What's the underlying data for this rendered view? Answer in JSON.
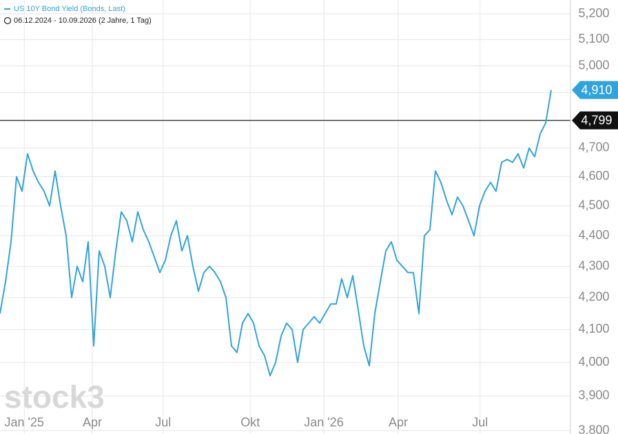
{
  "chart_data": {
    "type": "line",
    "subtitle": "06.12.2024 - 10.09.2026   (2 Jahre, 1 Tag)",
    "watermark": "stock3",
    "log_scale": true,
    "grid": true,
    "series": [
      {
        "name": "US 10Y Bond Yield (Bonds, Last)",
        "color": "#2fa3dc",
        "values": [
          4.15,
          4.25,
          4.38,
          4.6,
          4.55,
          4.68,
          4.62,
          4.58,
          4.55,
          4.5,
          4.62,
          4.5,
          4.4,
          4.2,
          4.3,
          4.25,
          4.38,
          4.05,
          4.35,
          4.3,
          4.2,
          4.35,
          4.48,
          4.45,
          4.38,
          4.48,
          4.42,
          4.38,
          4.33,
          4.28,
          4.32,
          4.4,
          4.45,
          4.35,
          4.4,
          4.3,
          4.22,
          4.28,
          4.3,
          4.28,
          4.25,
          4.2,
          4.05,
          4.03,
          4.12,
          4.15,
          4.12,
          4.05,
          4.02,
          3.96,
          4.0,
          4.08,
          4.12,
          4.1,
          4.0,
          4.1,
          4.12,
          4.14,
          4.12,
          4.15,
          4.18,
          4.18,
          4.26,
          4.2,
          4.27,
          4.16,
          4.05,
          3.99,
          4.15,
          4.25,
          4.35,
          4.38,
          4.32,
          4.3,
          4.28,
          4.28,
          4.15,
          4.4,
          4.42,
          4.62,
          4.58,
          4.52,
          4.47,
          4.53,
          4.5,
          4.45,
          4.4,
          4.5,
          4.55,
          4.58,
          4.55,
          4.65,
          4.66,
          4.65,
          4.68,
          4.63,
          4.7,
          4.67,
          4.75,
          4.79,
          4.91
        ]
      }
    ],
    "last_value": {
      "value": 4.91,
      "label": "4,910",
      "color": "#2fa3dc"
    },
    "reference_line": {
      "value": 4.799,
      "label": "4,799",
      "color": "#111111"
    },
    "xlim": [
      0,
      103.5
    ],
    "xticks": [
      {
        "value": 4.4,
        "label": "Jan '25"
      },
      {
        "value": 16.75,
        "label": "Apr"
      },
      {
        "value": 29.6,
        "label": "Jul"
      },
      {
        "value": 45.4,
        "label": "Okt"
      },
      {
        "value": 58.75,
        "label": "Jan '26"
      },
      {
        "value": 72.25,
        "label": "Apr"
      },
      {
        "value": 87.1,
        "label": "Jul"
      }
    ],
    "ylim": [
      3.8,
      5.2
    ],
    "yticks": [
      {
        "value": 3.8,
        "label": "3,800"
      },
      {
        "value": 3.9,
        "label": "3,900"
      },
      {
        "value": 4.0,
        "label": "4,000"
      },
      {
        "value": 4.1,
        "label": "4,100"
      },
      {
        "value": 4.2,
        "label": "4,200"
      },
      {
        "value": 4.3,
        "label": "4,300"
      },
      {
        "value": 4.4,
        "label": "4,400"
      },
      {
        "value": 4.5,
        "label": "4,500"
      },
      {
        "value": 4.6,
        "label": "4,600"
      },
      {
        "value": 4.7,
        "label": "4,700"
      },
      {
        "value": 4.8,
        "label": "4,800"
      },
      {
        "value": 4.9,
        "label": "4,900"
      },
      {
        "value": 5.0,
        "label": "5,000"
      },
      {
        "value": 5.1,
        "label": "5,100"
      },
      {
        "value": 5.2,
        "label": "5,200"
      }
    ]
  }
}
